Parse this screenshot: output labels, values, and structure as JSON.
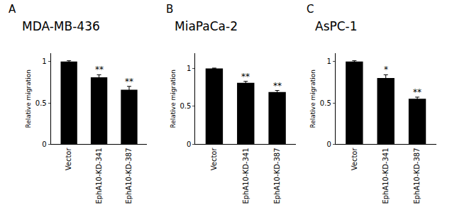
{
  "chart_data": [
    {
      "type": "bar",
      "panel": "A",
      "title": "MDA-MB-436",
      "y_label": "Relative migration",
      "categories": [
        "Vector",
        "EphA10-KD-341",
        "EphA10-KD-387"
      ],
      "values": [
        1.0,
        0.81,
        0.66
      ],
      "errors": [
        0.01,
        0.03,
        0.04
      ],
      "significance": [
        null,
        "**",
        "**"
      ],
      "color": "#000000",
      "ylim": [
        0,
        1.1
      ],
      "yticks": [
        0,
        0.5,
        1
      ],
      "grid": false
    },
    {
      "type": "bar",
      "panel": "B",
      "title": "MiaPaCa-2",
      "y_label": "Relative migration",
      "categories": [
        "Vector",
        "EphA10-KD-341",
        "EphA10-KD-387"
      ],
      "values": [
        1.0,
        0.81,
        0.69
      ],
      "errors": [
        0.005,
        0.02,
        0.02
      ],
      "significance": [
        null,
        "**",
        "**"
      ],
      "color": "#000000",
      "ylim": [
        0,
        1.2
      ],
      "yticks": [
        0,
        0.5,
        1
      ],
      "grid": false
    },
    {
      "type": "bar",
      "panel": "C",
      "title": "AsPC-1",
      "y_label": "Relative migration",
      "categories": [
        "Vector",
        "EphA10-KD-341",
        "EphA10-KD-387"
      ],
      "values": [
        1.0,
        0.8,
        0.55
      ],
      "errors": [
        0.01,
        0.04,
        0.02
      ],
      "significance": [
        null,
        "*",
        "**"
      ],
      "color": "#000000",
      "ylim": [
        0,
        1.1
      ],
      "yticks": [
        0,
        0.5,
        1
      ],
      "grid": false
    }
  ]
}
